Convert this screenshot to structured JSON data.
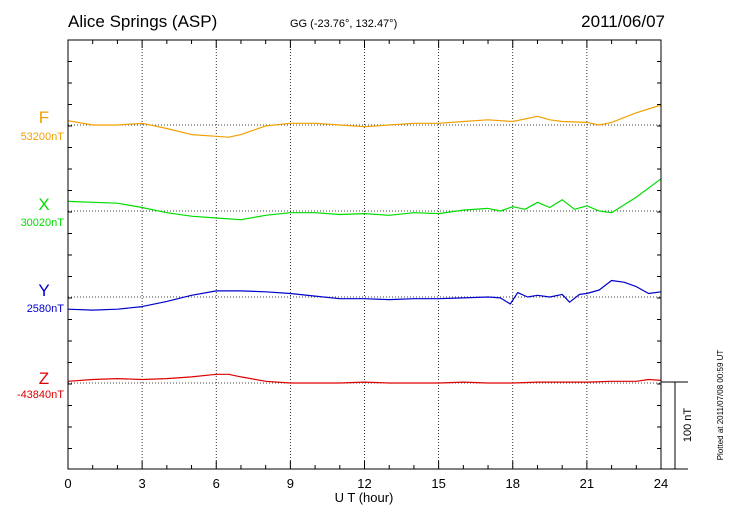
{
  "chart_data": {
    "type": "line",
    "title": "Alice Springs (ASP)",
    "subtitle": "GG (-23.76°, 132.47°)",
    "date": "2011/06/07",
    "xlabel": "U T (hour)",
    "xlim": [
      0,
      24
    ],
    "x_ticks": [
      "0",
      "3",
      "6",
      "9",
      "12",
      "15",
      "18",
      "21",
      "24"
    ],
    "scale_bar_label": "100 nT",
    "scale_bar_nT": 100,
    "plotted_note": "Plotted at 2011/07/08 00:59 UT",
    "grid": true,
    "series": [
      {
        "name": "F",
        "baseline_label": "53200nT",
        "baseline_nT": 53200,
        "color": "#f0a000",
        "x": [
          0,
          1,
          2,
          3,
          4,
          5,
          6,
          6.5,
          7,
          8,
          9,
          10,
          11,
          12,
          13,
          14,
          15,
          16,
          17,
          18,
          19,
          19.5,
          20,
          21,
          21.5,
          22,
          23,
          24
        ],
        "y": [
          53205,
          53200,
          53200,
          53202,
          53196,
          53189,
          53187,
          53186,
          53189,
          53199,
          53202,
          53202,
          53200,
          53198,
          53200,
          53202,
          53202,
          53204,
          53206,
          53204,
          53210,
          53206,
          53204,
          53203,
          53200,
          53203,
          53214,
          53223
        ]
      },
      {
        "name": "X",
        "baseline_label": "30020nT",
        "baseline_nT": 30020,
        "color": "#00dd00",
        "x": [
          0,
          1,
          2,
          3,
          4,
          5,
          6,
          7,
          8,
          9,
          10,
          11,
          12,
          13,
          14,
          15,
          16,
          17,
          17.5,
          18,
          18.5,
          19,
          19.5,
          20,
          20.5,
          21,
          21.5,
          22,
          23,
          24
        ],
        "y": [
          30031,
          30030,
          30029,
          30024,
          30018,
          30014,
          30012,
          30010,
          30015,
          30018,
          30018,
          30016,
          30017,
          30015,
          30018,
          30017,
          30021,
          30023,
          30020,
          30025,
          30022,
          30030,
          30024,
          30033,
          30022,
          30026,
          30020,
          30018,
          30036,
          30057
        ]
      },
      {
        "name": "Y",
        "baseline_label": "2580nT",
        "baseline_nT": 2580,
        "color": "#0000cc",
        "x": [
          0,
          1,
          2,
          3,
          4,
          5,
          6,
          7,
          8,
          9,
          10,
          11,
          12,
          13,
          14,
          15,
          16,
          17,
          17.5,
          17.9,
          18.2,
          18.6,
          19,
          19.5,
          20,
          20.3,
          20.7,
          21,
          21.5,
          22,
          22.5,
          23,
          23.5,
          24
        ],
        "y": [
          2566,
          2565,
          2566,
          2569,
          2575,
          2582,
          2587,
          2587,
          2586,
          2584,
          2581,
          2578,
          2578,
          2577,
          2578,
          2578,
          2579,
          2580,
          2579,
          2572,
          2585,
          2580,
          2582,
          2580,
          2583,
          2574,
          2583,
          2584,
          2588,
          2599,
          2597,
          2592,
          2584,
          2586
        ]
      },
      {
        "name": "Z",
        "baseline_label": "-43840nT",
        "baseline_nT": -43840,
        "color": "#dd0000",
        "x": [
          0,
          1,
          2,
          3,
          4,
          5,
          6,
          6.5,
          7,
          8,
          9,
          10,
          11,
          12,
          13,
          14,
          15,
          16,
          17,
          18,
          19,
          20,
          21,
          22,
          23,
          23.5,
          24
        ],
        "y": [
          -43838,
          -43836,
          -43835,
          -43836,
          -43835,
          -43833,
          -43830,
          -43830,
          -43833,
          -43838,
          -43840,
          -43840,
          -43840,
          -43839,
          -43840,
          -43840,
          -43840,
          -43839,
          -43840,
          -43840,
          -43839,
          -43839,
          -43839,
          -43838,
          -43838,
          -43836,
          -43837
        ]
      }
    ]
  }
}
